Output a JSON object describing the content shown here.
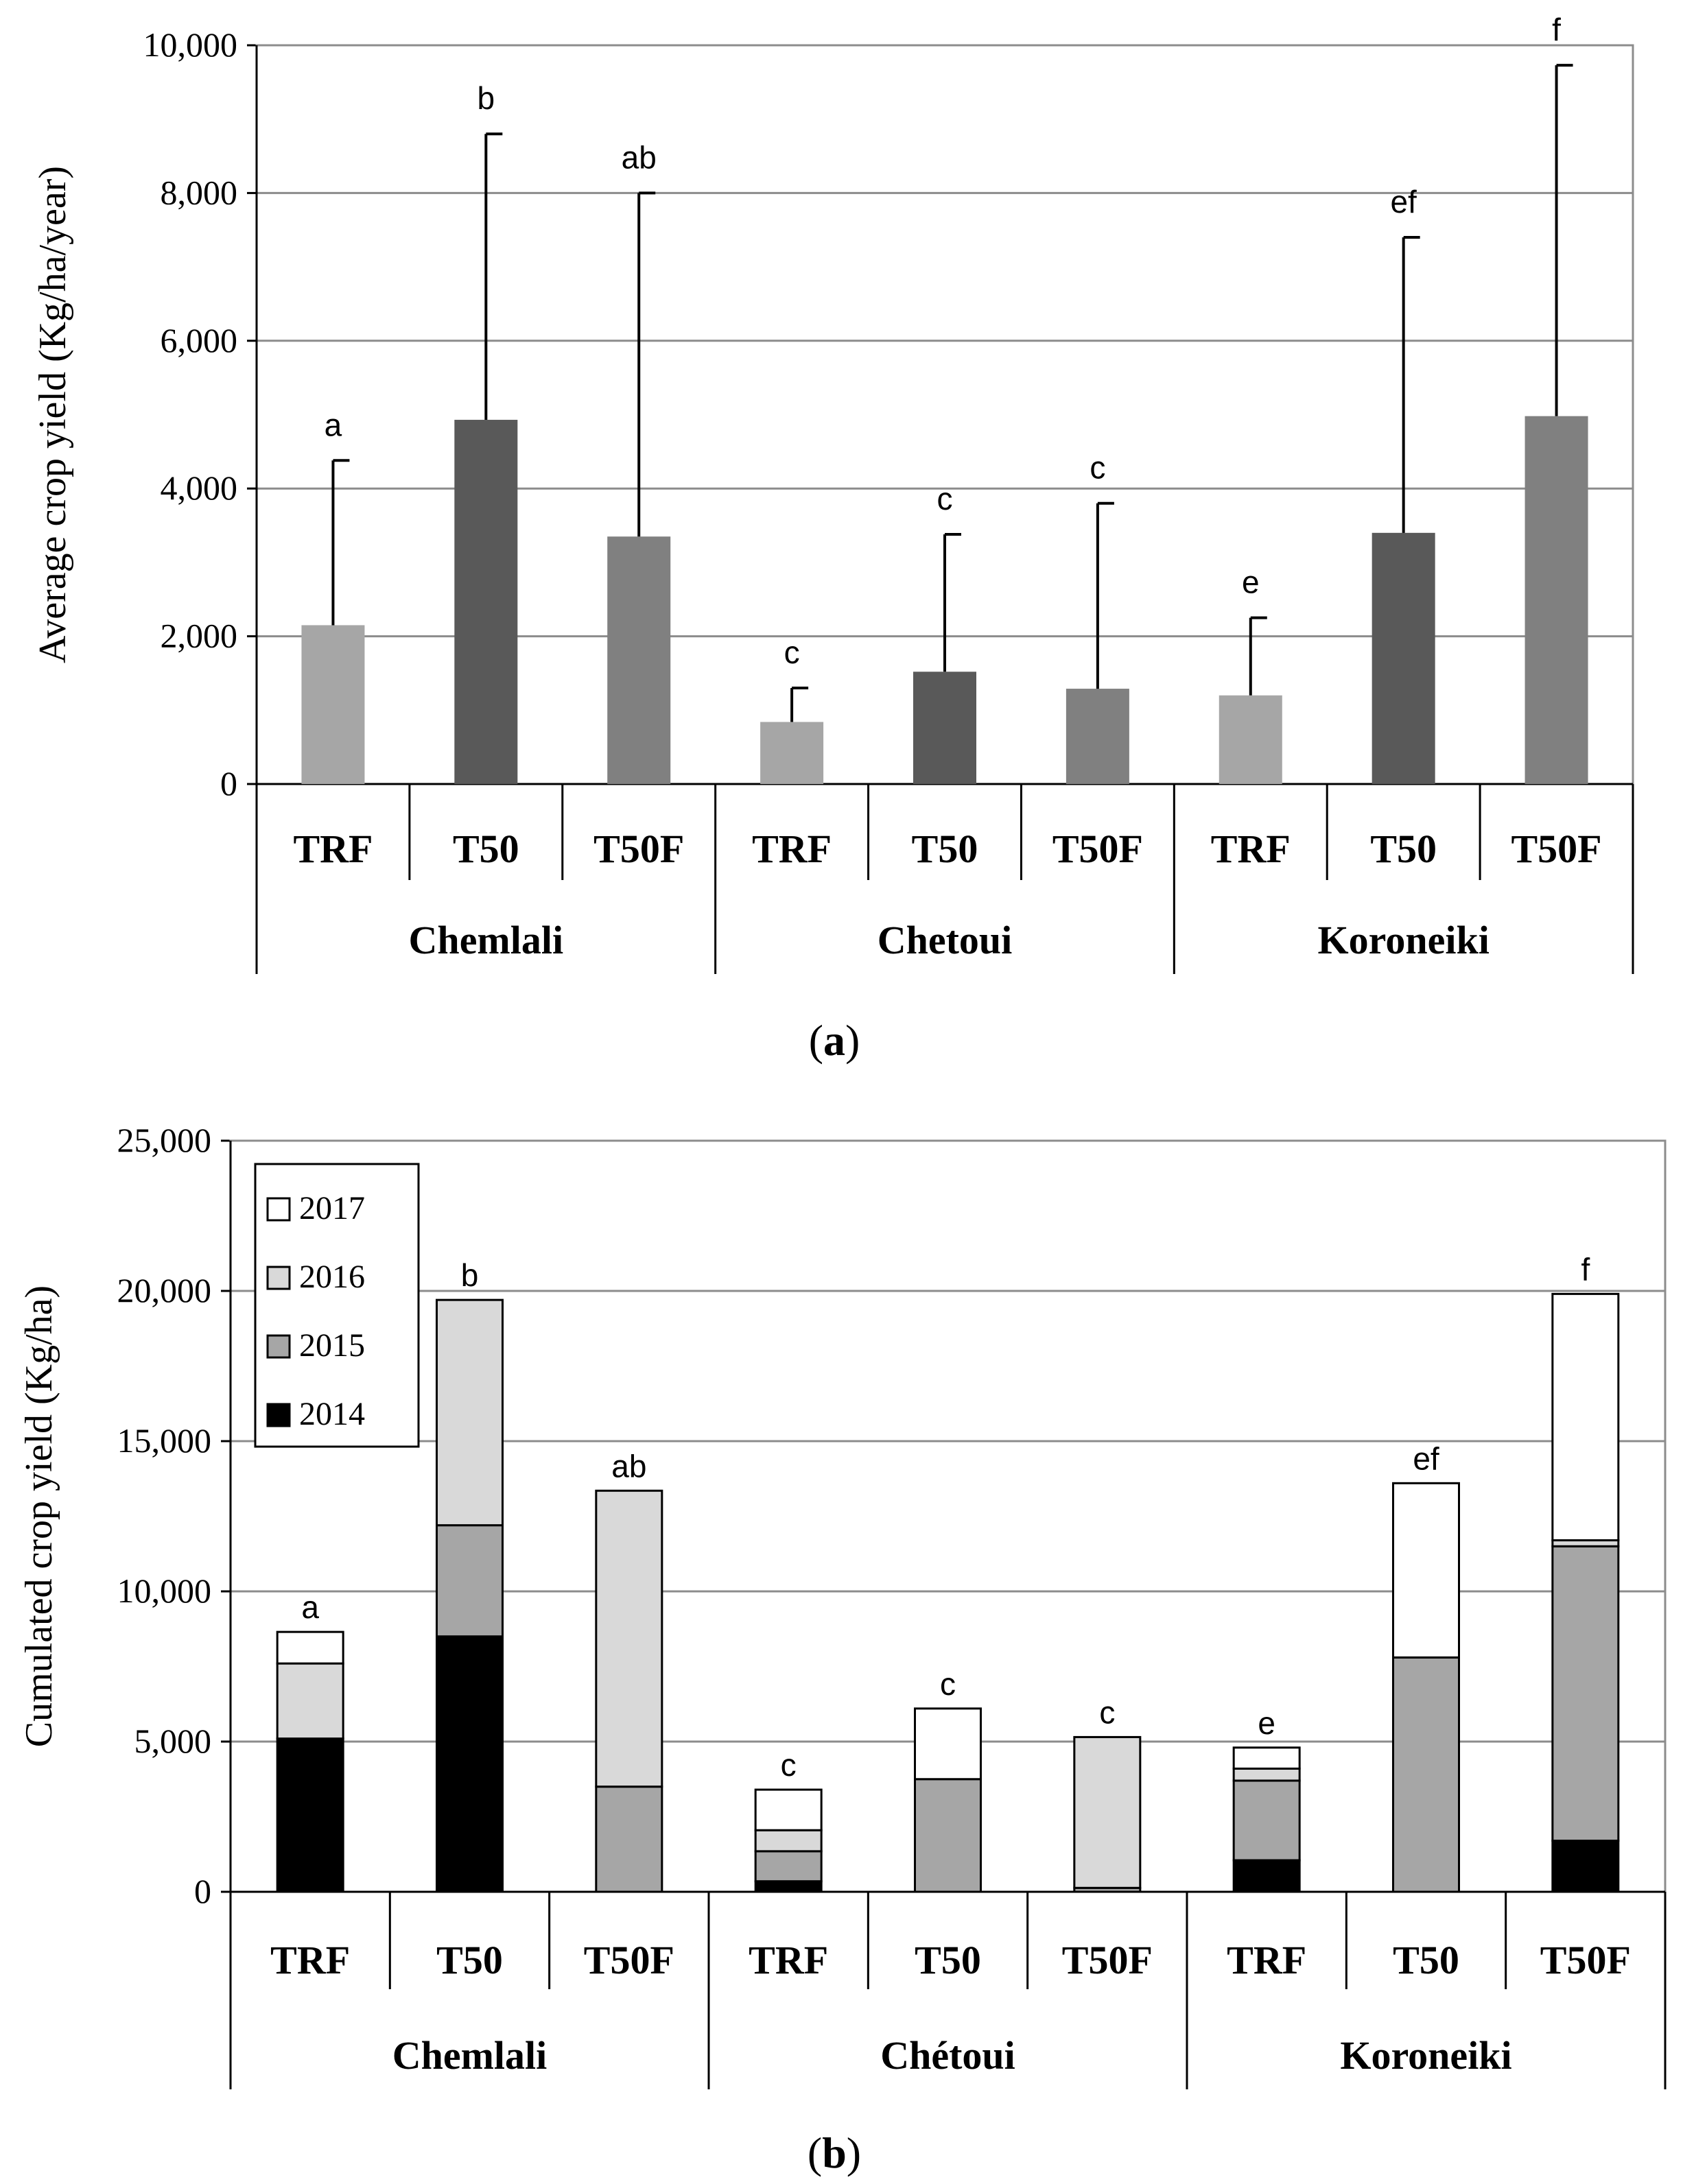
{
  "chart_data": [
    {
      "type": "bar",
      "panel_label": "a",
      "ylabel": "Average crop yield (Kg/ha/year)",
      "ylim": [
        0,
        10000
      ],
      "yticks": [
        0,
        2000,
        4000,
        6000,
        8000,
        10000
      ],
      "ytick_labels": [
        "0",
        "2,000",
        "4,000",
        "6,000",
        "8,000",
        "10,000"
      ],
      "grid": true,
      "groups": [
        "Chemlali",
        "Chetoui",
        "Koroneiki"
      ],
      "categories": [
        "TRF",
        "T50",
        "T50F"
      ],
      "series_colors": {
        "TRF": "#a6a6a6",
        "T50": "#595959",
        "T50F": "#808080"
      },
      "bars": [
        {
          "group": "Chemlali",
          "category": "TRF",
          "value": 2150,
          "error_top": 4380,
          "letter": "a"
        },
        {
          "group": "Chemlali",
          "category": "T50",
          "value": 4930,
          "error_top": 8800,
          "letter": "b"
        },
        {
          "group": "Chemlali",
          "category": "T50F",
          "value": 3350,
          "error_top": 8000,
          "letter": "ab"
        },
        {
          "group": "Chetoui",
          "category": "TRF",
          "value": 840,
          "error_top": 1300,
          "letter": "c"
        },
        {
          "group": "Chetoui",
          "category": "T50",
          "value": 1520,
          "error_top": 3380,
          "letter": "c"
        },
        {
          "group": "Chetoui",
          "category": "T50F",
          "value": 1290,
          "error_top": 3800,
          "letter": "c"
        },
        {
          "group": "Koroneiki",
          "category": "TRF",
          "value": 1200,
          "error_top": 2250,
          "letter": "e"
        },
        {
          "group": "Koroneiki",
          "category": "T50",
          "value": 3400,
          "error_top": 7400,
          "letter": "ef"
        },
        {
          "group": "Koroneiki",
          "category": "T50F",
          "value": 4980,
          "error_top": 9730,
          "letter": "f"
        }
      ]
    },
    {
      "type": "bar",
      "stacked": true,
      "panel_label": "b",
      "ylabel": "Cumulated crop yield (Kg/ha)",
      "ylim": [
        0,
        25000
      ],
      "yticks": [
        0,
        5000,
        10000,
        15000,
        20000,
        25000
      ],
      "ytick_labels": [
        "0",
        "5,000",
        "10,000",
        "15,000",
        "20,000",
        "25,000"
      ],
      "grid": true,
      "legend_position": "top-left",
      "legend": [
        "2017",
        "2016",
        "2015",
        "2014"
      ],
      "series_colors": {
        "2014": "#000000",
        "2015": "#a6a6a6",
        "2016": "#d9d9d9",
        "2017": "#ffffff"
      },
      "groups": [
        "Chemlali",
        "Chétoui",
        "Koroneiki"
      ],
      "categories": [
        "TRF",
        "T50",
        "T50F"
      ],
      "bars": [
        {
          "group": "Chemlali",
          "category": "TRF",
          "letter": "a",
          "segments": {
            "2014": 5100,
            "2015": 0,
            "2016": 2500,
            "2017": 1050
          }
        },
        {
          "group": "Chemlali",
          "category": "T50",
          "letter": "b",
          "segments": {
            "2014": 8500,
            "2015": 3700,
            "2016": 7500,
            "2017": 0
          }
        },
        {
          "group": "Chemlali",
          "category": "T50F",
          "letter": "ab",
          "segments": {
            "2014": 0,
            "2015": 3500,
            "2016": 9850,
            "2017": 0
          }
        },
        {
          "group": "Chétoui",
          "category": "TRF",
          "letter": "c",
          "segments": {
            "2014": 350,
            "2015": 1000,
            "2016": 700,
            "2017": 1350
          }
        },
        {
          "group": "Chétoui",
          "category": "T50",
          "letter": "c",
          "segments": {
            "2014": 0,
            "2015": 3750,
            "2016": 0,
            "2017": 2350
          }
        },
        {
          "group": "Chétoui",
          "category": "T50F",
          "letter": "c",
          "segments": {
            "2014": 0,
            "2015": 130,
            "2016": 5020,
            "2017": 0
          }
        },
        {
          "group": "Koroneiki",
          "category": "TRF",
          "letter": "e",
          "segments": {
            "2014": 1050,
            "2015": 2650,
            "2016": 400,
            "2017": 700
          }
        },
        {
          "group": "Koroneiki",
          "category": "T50",
          "letter": "ef",
          "segments": {
            "2014": 0,
            "2015": 7800,
            "2016": 0,
            "2017": 5800
          }
        },
        {
          "group": "Koroneiki",
          "category": "T50F",
          "letter": "f",
          "segments": {
            "2014": 1700,
            "2015": 9800,
            "2016": 200,
            "2017": 8200
          }
        }
      ]
    }
  ]
}
